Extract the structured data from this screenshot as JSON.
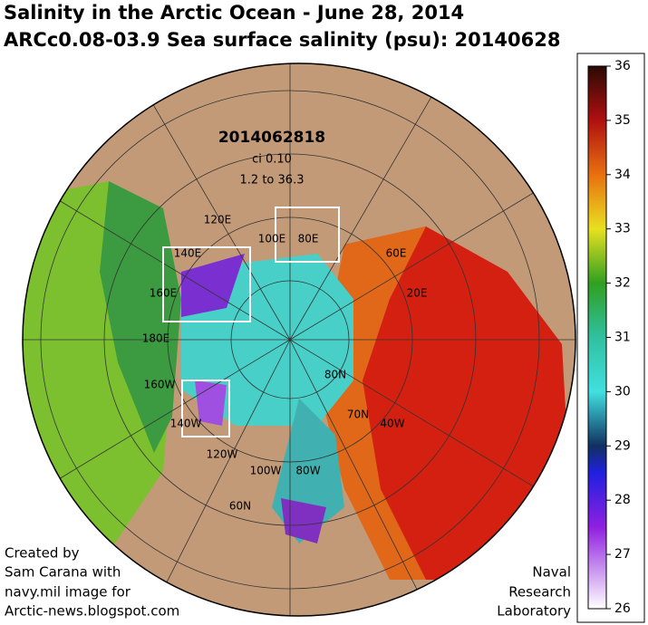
{
  "title": "Salinity in the Arctic Ocean - June 28, 2014",
  "subtitle": "ARCc0.08-03.9 Sea surface salinity (psu): 20140628",
  "map": {
    "timestamp": "2014062818",
    "contour_interval": "ci 0.10",
    "range": "1.2 to 36.3",
    "grid_labels": [
      "120E",
      "140E",
      "160E",
      "180E",
      "160W",
      "140W",
      "120W",
      "100W",
      "80W",
      "100E",
      "80E",
      "60E",
      "20E",
      "80N",
      "70N",
      "40W",
      "60N"
    ]
  },
  "colorbar": {
    "lim": [
      26,
      36
    ],
    "ticks": [
      36,
      35,
      34,
      33,
      32,
      31,
      30,
      29,
      28,
      27,
      26
    ]
  },
  "credit": [
    "Created by",
    "Sam Carana with",
    "navy.mil image for",
    "Arctic-news.blogspot.com"
  ],
  "source": [
    "Naval",
    "Research",
    "Laboratory"
  ]
}
